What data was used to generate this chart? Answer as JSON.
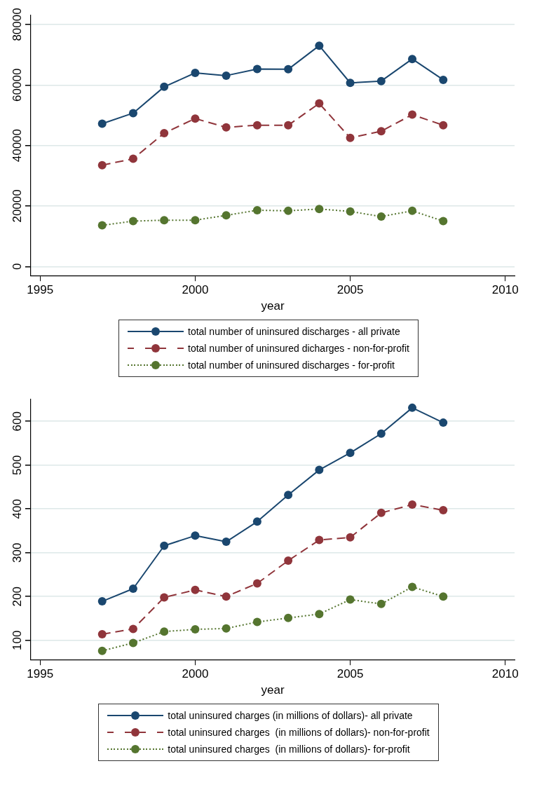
{
  "chart_data": [
    {
      "type": "line",
      "xlabel": "year",
      "x": [
        1997,
        1998,
        1999,
        2000,
        2001,
        2002,
        2003,
        2004,
        2005,
        2006,
        2007,
        2008
      ],
      "xlim": [
        1994.7,
        2010.3
      ],
      "xticks": [
        1995,
        2000,
        2005,
        2010
      ],
      "ylim": [
        -3000,
        83000
      ],
      "yticks": [
        0,
        20000,
        40000,
        60000,
        80000
      ],
      "grid": "y",
      "legend": "bottom",
      "marker": "circle",
      "series": [
        {
          "name": "total number of uninsured discharges - all private",
          "color": "#1a476f",
          "line_style": "solid",
          "values": [
            47200,
            50700,
            59400,
            64000,
            63100,
            65300,
            65200,
            73000,
            60700,
            61300,
            68600,
            61700
          ]
        },
        {
          "name": "total number of uninsured dicharges - non-for-profit",
          "color": "#90353b",
          "line_style": "dashed",
          "values": [
            33500,
            35600,
            44100,
            48900,
            46000,
            46700,
            46700,
            53900,
            42500,
            44700,
            50200,
            46700
          ]
        },
        {
          "name": "total number of uninsured discharges - for-profit",
          "color": "#55752f",
          "line_style": "dotted",
          "values": [
            13600,
            15000,
            15300,
            15300,
            16900,
            18600,
            18400,
            19000,
            18200,
            16500,
            18400,
            15000
          ]
        }
      ]
    },
    {
      "type": "line",
      "xlabel": "year",
      "x": [
        1997,
        1998,
        1999,
        2000,
        2001,
        2002,
        2003,
        2004,
        2005,
        2006,
        2007,
        2008
      ],
      "xlim": [
        1994.7,
        2010.3
      ],
      "xticks": [
        1995,
        2000,
        2005,
        2010
      ],
      "ylim": [
        56,
        650
      ],
      "yticks": [
        100,
        200,
        300,
        400,
        500,
        600
      ],
      "grid": "y",
      "legend": "bottom",
      "marker": "circle",
      "series": [
        {
          "name": "total uninsured charges (in millions of dollars)- all private",
          "color": "#1a476f",
          "line_style": "solid",
          "values": [
            189,
            218,
            316,
            339,
            325,
            371,
            432,
            489,
            528,
            572,
            631,
            597
          ]
        },
        {
          "name": "total uninsured charges  (in millions of dollars)- non-for-profit",
          "color": "#90353b",
          "line_style": "dashed",
          "values": [
            114,
            126,
            198,
            215,
            200,
            230,
            282,
            329,
            335,
            391,
            410,
            397
          ]
        },
        {
          "name": "total uninsured charges  (in millions of dollars)- for-profit",
          "color": "#55752f",
          "line_style": "dotted",
          "values": [
            76,
            94,
            120,
            125,
            127,
            142,
            151,
            160,
            193,
            183,
            222,
            200
          ]
        }
      ]
    }
  ]
}
